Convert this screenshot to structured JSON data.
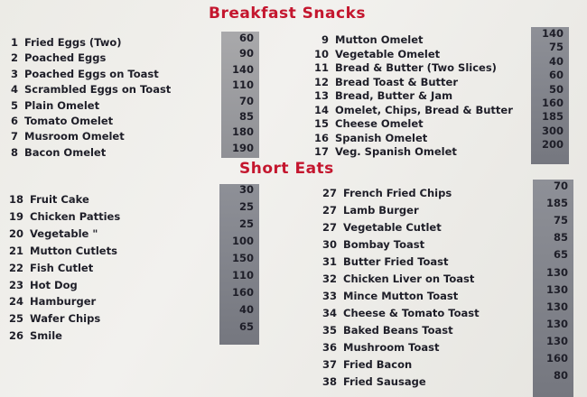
{
  "sections": [
    {
      "title": "Breakfast Snacks",
      "left": [
        {
          "num": "1",
          "name": "Fried Eggs (Two)",
          "price": "60"
        },
        {
          "num": "2",
          "name": "Poached Eggs",
          "price": "90"
        },
        {
          "num": "3",
          "name": "Poached Eggs on Toast",
          "price": "140"
        },
        {
          "num": "4",
          "name": "Scrambled Eggs on Toast",
          "price": "110"
        },
        {
          "num": "5",
          "name": "Plain Omelet",
          "price": "70"
        },
        {
          "num": "6",
          "name": "Tomato Omelet",
          "price": "85"
        },
        {
          "num": "7",
          "name": "Musroom Omelet",
          "price": "180"
        },
        {
          "num": "8",
          "name": "Bacon Omelet",
          "price": "190"
        }
      ],
      "right": [
        {
          "num": "9",
          "name": "Mutton Omelet",
          "price": "140"
        },
        {
          "num": "10",
          "name": "Vegetable Omelet",
          "price": "75"
        },
        {
          "num": "11",
          "name": "Bread & Butter (Two Slices)",
          "price": "40"
        },
        {
          "num": "12",
          "name": "Bread Toast & Butter",
          "price": "60"
        },
        {
          "num": "13",
          "name": "Bread, Butter & Jam",
          "price": "50"
        },
        {
          "num": "14",
          "name": "Omelet, Chips, Bread & Butter",
          "price": "160"
        },
        {
          "num": "15",
          "name": "Cheese Omelet",
          "price": "185"
        },
        {
          "num": "16",
          "name": "Spanish Omelet",
          "price": "300"
        },
        {
          "num": "17",
          "name": "Veg. Spanish Omelet",
          "price": "200"
        }
      ]
    },
    {
      "title": "Short Eats",
      "left": [
        {
          "num": "18",
          "name": "Fruit Cake",
          "price": "30"
        },
        {
          "num": "19",
          "name": "Chicken Patties",
          "price": "25"
        },
        {
          "num": "20",
          "name": "Vegetable   \"",
          "price": "25"
        },
        {
          "num": "21",
          "name": "Mutton Cutlets",
          "price": "100"
        },
        {
          "num": "22",
          "name": "Fish Cutlet",
          "price": "150"
        },
        {
          "num": "23",
          "name": "Hot Dog",
          "price": "110"
        },
        {
          "num": "24",
          "name": "Hamburger",
          "price": "160"
        },
        {
          "num": "25",
          "name": "Wafer Chips",
          "price": "40"
        },
        {
          "num": "26",
          "name": "Smile",
          "price": "65"
        }
      ],
      "right": [
        {
          "num": "27",
          "name": "French Fried Chips",
          "price": "70"
        },
        {
          "num": "27",
          "name": "Lamb Burger",
          "price": "185"
        },
        {
          "num": "27",
          "name": "Vegetable Cutlet",
          "price": "75"
        },
        {
          "num": "30",
          "name": "Bombay Toast",
          "price": "85"
        },
        {
          "num": "31",
          "name": "Butter Fried Toast",
          "price": "65"
        },
        {
          "num": "32",
          "name": "Chicken Liver on Toast",
          "price": "130"
        },
        {
          "num": "33",
          "name": "Mince Mutton Toast",
          "price": "130"
        },
        {
          "num": "34",
          "name": "Cheese & Tomato Toast",
          "price": "130"
        },
        {
          "num": "35",
          "name": "Baked Beans Toast",
          "price": "130"
        },
        {
          "num": "36",
          "name": "Mushroom Toast",
          "price": "130"
        },
        {
          "num": "37",
          "name": "Fried Bacon",
          "price": "160"
        },
        {
          "num": "38",
          "name": "Fried Sausage",
          "price": "80"
        }
      ]
    }
  ],
  "colors": {
    "heading": "#c4162e",
    "text": "#1e1e28",
    "price_band": "#8f9095"
  }
}
